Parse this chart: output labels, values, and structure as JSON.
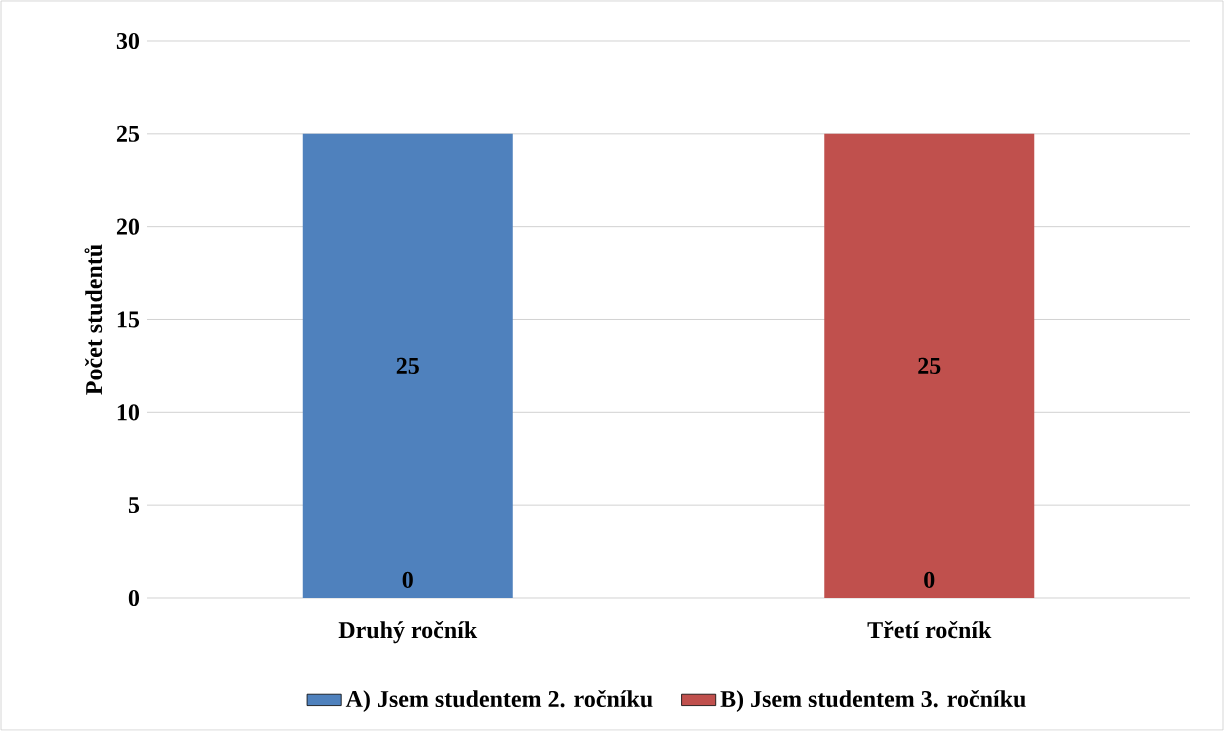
{
  "chart_data": {
    "type": "bar",
    "ylabel": "Počet studentů",
    "categories": [
      "Druhý ročník",
      "Třetí ročník"
    ],
    "series": [
      {
        "name": "A) Jsem studentem 2. ročníku",
        "color": "#4f81bd",
        "values": [
          25,
          0
        ]
      },
      {
        "name": "B) Jsem studentem 3. ročníku",
        "color": "#c0504d",
        "values": [
          0,
          25
        ]
      }
    ],
    "ylim": [
      0,
      30
    ],
    "yticks": [
      0,
      5,
      10,
      15,
      20,
      25,
      30
    ],
    "grid": "y",
    "legend": "bottom",
    "data_labels": true
  }
}
